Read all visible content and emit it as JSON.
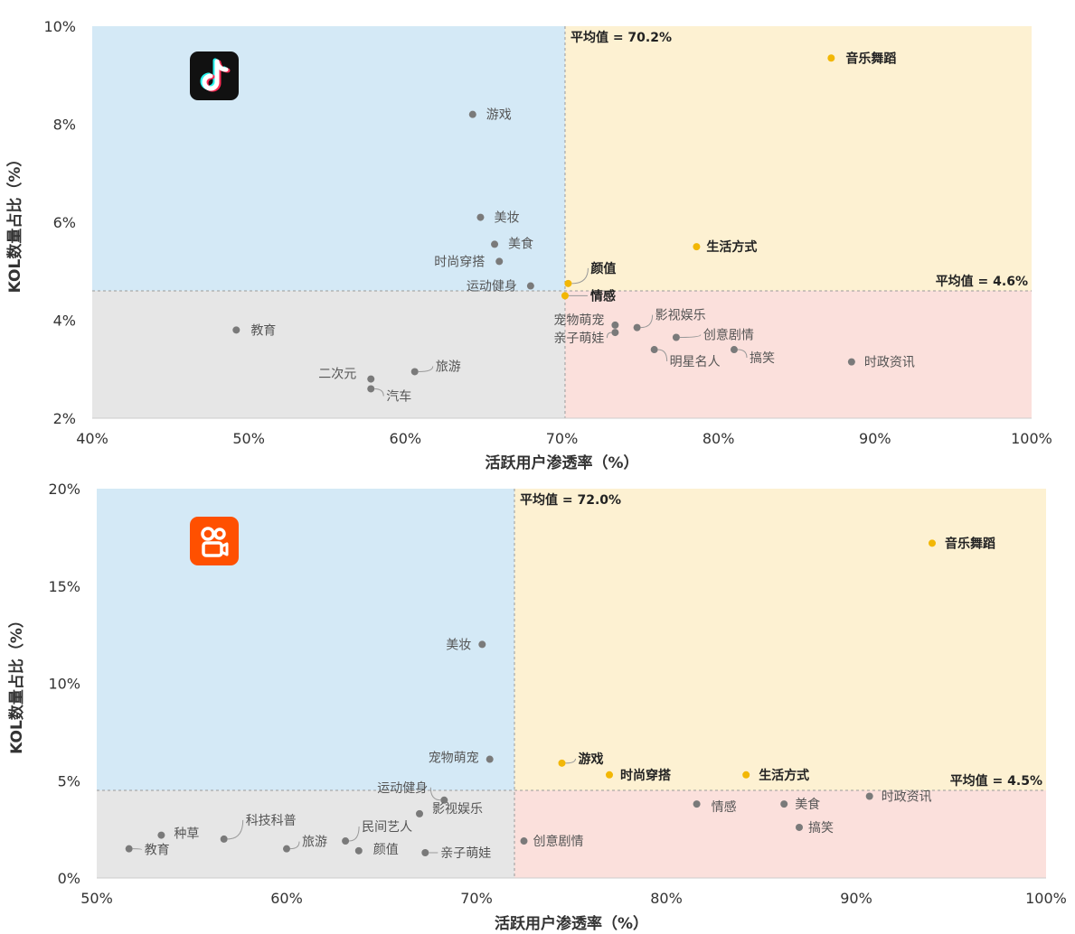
{
  "chart_data": [
    {
      "type": "scatter",
      "platform_icon": "douyin-logo-icon",
      "xlabel": "活跃用户渗透率（%）",
      "ylabel": "KOL数量占比（%）",
      "xlim": [
        40,
        100
      ],
      "ylim": [
        2,
        10
      ],
      "xticks": [
        "40%",
        "50%",
        "60%",
        "70%",
        "80%",
        "90%",
        "100%"
      ],
      "yticks": [
        "2%",
        "4%",
        "6%",
        "8%",
        "10%"
      ],
      "x_tick_values": [
        40,
        50,
        60,
        70,
        80,
        90,
        100
      ],
      "y_tick_values": [
        2,
        4,
        6,
        8,
        10
      ],
      "avg_x": 70.2,
      "avg_y": 4.6,
      "avg_x_label": "平均值 = 70.2%",
      "avg_y_label": "平均值 = 4.6%",
      "quadrant_colors": {
        "top_left": "#d4e9f6",
        "top_right": "#fdf1d2",
        "bottom_left": "#e6e6e6",
        "bottom_right": "#fbe0dc"
      },
      "points": [
        {
          "name": "音乐舞蹈",
          "x": 87.2,
          "y": 9.35,
          "highlight": true
        },
        {
          "name": "游戏",
          "x": 64.3,
          "y": 8.2,
          "highlight": false
        },
        {
          "name": "美妆",
          "x": 64.8,
          "y": 6.1,
          "highlight": false
        },
        {
          "name": "美食",
          "x": 65.7,
          "y": 5.55,
          "highlight": false
        },
        {
          "name": "时尚穿搭",
          "x": 66.0,
          "y": 5.2,
          "highlight": false
        },
        {
          "name": "生活方式",
          "x": 78.6,
          "y": 5.5,
          "highlight": true
        },
        {
          "name": "颜值",
          "x": 70.4,
          "y": 4.75,
          "highlight": true
        },
        {
          "name": "情感",
          "x": 70.2,
          "y": 4.5,
          "highlight": true
        },
        {
          "name": "运动健身",
          "x": 68.0,
          "y": 4.7,
          "highlight": false
        },
        {
          "name": "宠物萌宠",
          "x": 73.4,
          "y": 3.9,
          "highlight": false
        },
        {
          "name": "亲子萌娃",
          "x": 73.4,
          "y": 3.75,
          "highlight": false
        },
        {
          "name": "影视娱乐",
          "x": 74.8,
          "y": 3.85,
          "highlight": false
        },
        {
          "name": "创意剧情",
          "x": 77.3,
          "y": 3.65,
          "highlight": false
        },
        {
          "name": "明星名人",
          "x": 75.9,
          "y": 3.4,
          "highlight": false
        },
        {
          "name": "搞笑",
          "x": 81.0,
          "y": 3.4,
          "highlight": false
        },
        {
          "name": "时政资讯",
          "x": 88.5,
          "y": 3.15,
          "highlight": false
        },
        {
          "name": "教育",
          "x": 49.2,
          "y": 3.8,
          "highlight": false
        },
        {
          "name": "旅游",
          "x": 60.6,
          "y": 2.95,
          "highlight": false
        },
        {
          "name": "二次元",
          "x": 57.8,
          "y": 2.8,
          "highlight": false
        },
        {
          "name": "汽车",
          "x": 57.8,
          "y": 2.6,
          "highlight": false
        }
      ]
    },
    {
      "type": "scatter",
      "platform_icon": "kuaishou-logo-icon",
      "xlabel": "活跃用户渗透率（%）",
      "ylabel": "KOL数量占比（%）",
      "xlim": [
        50,
        100
      ],
      "ylim": [
        0,
        20
      ],
      "xticks": [
        "50%",
        "60%",
        "70%",
        "80%",
        "90%",
        "100%"
      ],
      "yticks": [
        "0%",
        "5%",
        "10%",
        "15%",
        "20%"
      ],
      "x_tick_values": [
        50,
        60,
        70,
        80,
        90,
        100
      ],
      "y_tick_values": [
        0,
        5,
        10,
        15,
        20
      ],
      "avg_x": 72.0,
      "avg_y": 4.5,
      "avg_x_label": "平均值 = 72.0%",
      "avg_y_label": "平均值 = 4.5%",
      "quadrant_colors": {
        "top_left": "#d4e9f6",
        "top_right": "#fdf1d2",
        "bottom_left": "#e6e6e6",
        "bottom_right": "#fbe0dc"
      },
      "points": [
        {
          "name": "音乐舞蹈",
          "x": 94.0,
          "y": 17.2,
          "highlight": true
        },
        {
          "name": "美妆",
          "x": 70.3,
          "y": 12.0,
          "highlight": false
        },
        {
          "name": "宠物萌宠",
          "x": 70.7,
          "y": 6.1,
          "highlight": false
        },
        {
          "name": "游戏",
          "x": 74.5,
          "y": 5.9,
          "highlight": true
        },
        {
          "name": "时尚穿搭",
          "x": 77.0,
          "y": 5.3,
          "highlight": true
        },
        {
          "name": "生活方式",
          "x": 84.2,
          "y": 5.3,
          "highlight": true
        },
        {
          "name": "运动健身",
          "x": 68.3,
          "y": 4.0,
          "highlight": false
        },
        {
          "name": "影视娱乐",
          "x": 67.0,
          "y": 3.3,
          "highlight": false
        },
        {
          "name": "情感",
          "x": 81.6,
          "y": 3.8,
          "highlight": false
        },
        {
          "name": "美食",
          "x": 86.2,
          "y": 3.8,
          "highlight": false
        },
        {
          "name": "时政资讯",
          "x": 90.7,
          "y": 4.2,
          "highlight": false
        },
        {
          "name": "搞笑",
          "x": 87.0,
          "y": 2.6,
          "highlight": false
        },
        {
          "name": "科技科普",
          "x": 56.7,
          "y": 2.0,
          "highlight": false
        },
        {
          "name": "种草",
          "x": 53.4,
          "y": 2.2,
          "highlight": false
        },
        {
          "name": "教育",
          "x": 51.7,
          "y": 1.5,
          "highlight": false
        },
        {
          "name": "旅游",
          "x": 60.0,
          "y": 1.5,
          "highlight": false
        },
        {
          "name": "民间艺人",
          "x": 63.1,
          "y": 1.9,
          "highlight": false
        },
        {
          "name": "颜值",
          "x": 63.8,
          "y": 1.4,
          "highlight": false
        },
        {
          "name": "亲子萌娃",
          "x": 67.3,
          "y": 1.3,
          "highlight": false
        },
        {
          "name": "创意剧情",
          "x": 72.5,
          "y": 1.9,
          "highlight": false
        }
      ]
    }
  ]
}
